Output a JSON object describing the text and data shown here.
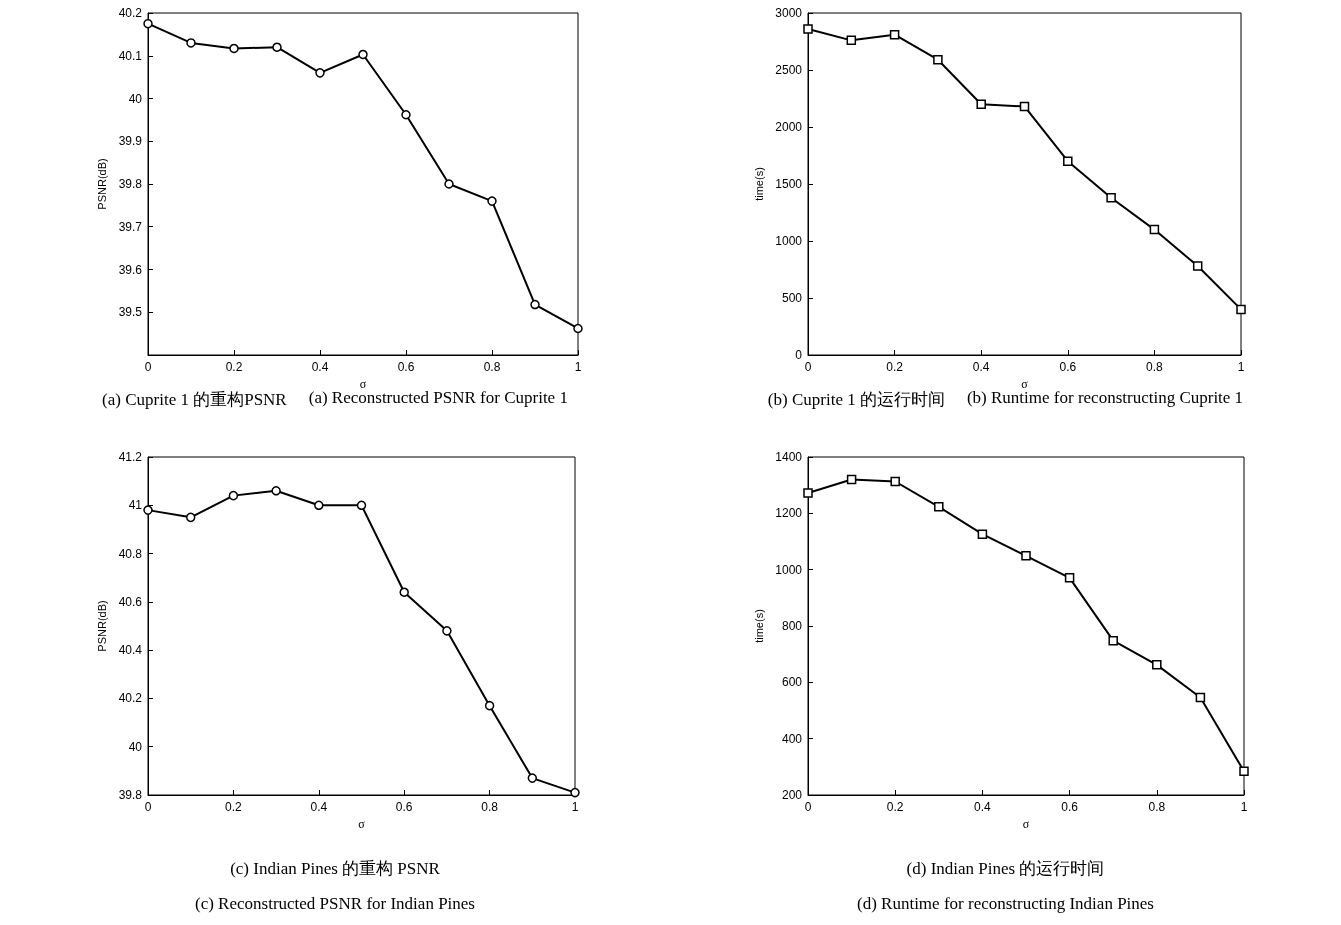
{
  "chart_data": [
    {
      "type": "line",
      "xlabel": "σ",
      "ylabel": "PSNR(dB)",
      "x": [
        0,
        0.1,
        0.2,
        0.3,
        0.4,
        0.5,
        0.6,
        0.7,
        0.8,
        0.9,
        1
      ],
      "series": [
        {
          "color": "#000000",
          "values": [
            40.175,
            40.13,
            40.117,
            40.12,
            40.06,
            40.103,
            39.962,
            39.8,
            39.76,
            39.518,
            39.462
          ]
        }
      ],
      "xlim": [
        0,
        1
      ],
      "xticks": [
        0,
        0.2,
        0.4,
        0.6,
        0.8,
        1
      ],
      "ylim": [
        39.4,
        40.2
      ],
      "yticks": [
        39.5,
        39.6,
        39.7,
        39.8,
        39.9,
        40,
        40.1,
        40.2
      ],
      "marker": "circle",
      "annotations": [
        "(a) Cuprite 1 的重构PSNR",
        "(a) Reconstructed PSNR for Cuprite 1"
      ]
    },
    {
      "type": "line",
      "xlabel": "σ",
      "ylabel": "time(s)",
      "x": [
        0,
        0.1,
        0.2,
        0.3,
        0.4,
        0.5,
        0.6,
        0.7,
        0.8,
        0.9,
        1
      ],
      "series": [
        {
          "color": "#000000",
          "values": [
            2860,
            2760,
            2810,
            2590,
            2200,
            2180,
            1700,
            1380,
            1100,
            780,
            400
          ]
        }
      ],
      "xlim": [
        0,
        1
      ],
      "xticks": [
        0,
        0.2,
        0.4,
        0.6,
        0.8,
        1
      ],
      "ylim": [
        0,
        3000
      ],
      "yticks": [
        0,
        500,
        1000,
        1500,
        2000,
        2500,
        3000
      ],
      "marker": "square",
      "annotations": [
        "(b) Cuprite 1 的运行时间",
        "(b) Runtime for reconstructing Cuprite 1"
      ]
    },
    {
      "type": "line",
      "xlabel": "σ",
      "ylabel": "PSNR(dB)",
      "x": [
        0,
        0.1,
        0.2,
        0.3,
        0.4,
        0.5,
        0.6,
        0.7,
        0.8,
        0.9,
        1
      ],
      "series": [
        {
          "color": "#000000",
          "values": [
            40.98,
            40.95,
            41.04,
            41.06,
            41.0,
            41.0,
            40.64,
            40.48,
            40.17,
            39.87,
            39.81
          ]
        }
      ],
      "xlim": [
        0,
        1
      ],
      "xticks": [
        0,
        0.2,
        0.4,
        0.6,
        0.8,
        1
      ],
      "ylim": [
        39.8,
        41.2
      ],
      "yticks": [
        39.8,
        40,
        40.2,
        40.4,
        40.6,
        40.8,
        41,
        41.2
      ],
      "marker": "circle",
      "annotations": [
        "(c) Indian Pines 的重构 PSNR",
        "(c) Reconstructed PSNR for Indian Pines"
      ]
    },
    {
      "type": "line",
      "xlabel": "σ",
      "ylabel": "time(s)",
      "x": [
        0,
        0.1,
        0.2,
        0.3,
        0.4,
        0.5,
        0.6,
        0.7,
        0.8,
        0.9,
        1
      ],
      "series": [
        {
          "color": "#000000",
          "values": [
            1272,
            1320,
            1313,
            1223,
            1126,
            1049,
            971,
            748,
            662,
            546,
            284
          ]
        }
      ],
      "xlim": [
        0,
        1
      ],
      "xticks": [
        0,
        0.2,
        0.4,
        0.6,
        0.8,
        1
      ],
      "ylim": [
        200,
        1400
      ],
      "yticks": [
        200,
        400,
        600,
        800,
        1000,
        1200,
        1400
      ],
      "marker": "square",
      "annotations": [
        "(d) Indian Pines 的运行时间",
        "(d) Runtime for reconstructing Indian Pines"
      ]
    }
  ]
}
